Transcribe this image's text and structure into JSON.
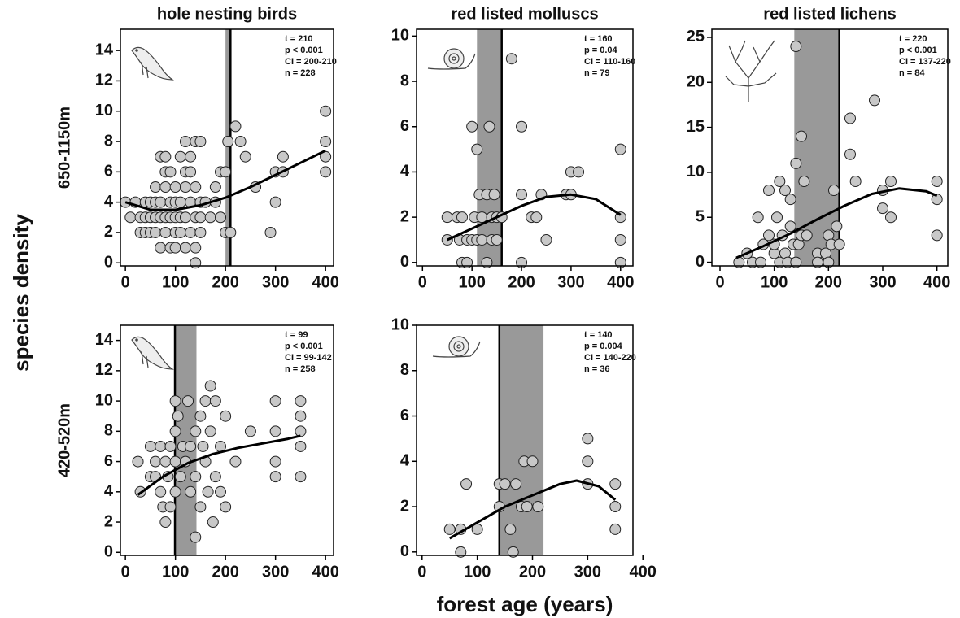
{
  "ylabel": "species density",
  "xlabel": "forest age (years)",
  "chart_data": [
    {
      "type": "scatter",
      "title": "hole nesting birds",
      "row_label": "650-1150m",
      "point_color": "#c8c8c8",
      "band_color": "#999999",
      "xlim": [
        -10,
        416
      ],
      "ylim": [
        -0.2,
        15.4
      ],
      "xticks": [
        0,
        100,
        200,
        300,
        400
      ],
      "yticks": [
        0,
        2,
        4,
        6,
        8,
        10,
        12,
        14
      ],
      "x": [
        0,
        10,
        20,
        30,
        30,
        40,
        40,
        40,
        50,
        50,
        50,
        60,
        60,
        60,
        60,
        70,
        70,
        70,
        70,
        80,
        80,
        80,
        80,
        80,
        90,
        90,
        90,
        90,
        100,
        100,
        100,
        100,
        100,
        110,
        110,
        110,
        110,
        120,
        120,
        120,
        120,
        120,
        130,
        130,
        130,
        130,
        140,
        140,
        140,
        140,
        140,
        150,
        150,
        150,
        150,
        160,
        170,
        180,
        180,
        190,
        190,
        200,
        200,
        205,
        210,
        220,
        230,
        240,
        260,
        290,
        300,
        300,
        315,
        315,
        400,
        400,
        400,
        400
      ],
      "values": [
        4,
        3,
        4,
        2,
        3,
        2,
        3,
        4,
        2,
        3,
        4,
        2,
        3,
        4,
        5,
        1,
        3,
        4,
        7,
        2,
        3,
        5,
        6,
        7,
        1,
        3,
        4,
        6,
        1,
        2,
        3,
        4,
        5,
        2,
        3,
        4,
        7,
        1,
        3,
        5,
        6,
        8,
        2,
        4,
        6,
        7,
        0,
        1,
        3,
        5,
        8,
        2,
        3,
        4,
        8,
        4,
        3,
        5,
        4,
        6,
        3,
        2,
        6,
        8,
        2,
        9,
        8,
        7,
        5,
        2,
        4,
        6,
        7,
        6,
        10,
        8,
        7,
        6
      ],
      "fit": {
        "x": [
          0,
          50,
          100,
          150,
          200,
          250,
          300,
          350,
          400
        ],
        "values": [
          4,
          3.5,
          3.5,
          3.8,
          4.3,
          5,
          5.8,
          6.6,
          7.4
        ]
      },
      "threshold": 210,
      "ci": [
        200,
        210
      ],
      "annotations": [
        "t = 210",
        "p < 0.001",
        "CI = 200-210",
        "n = 228"
      ]
    },
    {
      "type": "scatter",
      "title": "red listed molluscs",
      "point_color": "#c8c8c8",
      "band_color": "#999999",
      "xlim": [
        -12,
        425
      ],
      "ylim": [
        -0.15,
        10.3
      ],
      "xticks": [
        0,
        100,
        200,
        300,
        400
      ],
      "yticks": [
        0,
        2,
        4,
        6,
        8,
        10
      ],
      "x": [
        50,
        50,
        70,
        75,
        80,
        80,
        90,
        90,
        100,
        100,
        105,
        110,
        110,
        115,
        120,
        120,
        130,
        130,
        135,
        140,
        140,
        145,
        150,
        150,
        160,
        180,
        200,
        200,
        200,
        220,
        230,
        240,
        250,
        290,
        300,
        300,
        315,
        400,
        400,
        400,
        400
      ],
      "values": [
        1,
        2,
        2,
        1,
        0,
        2,
        1,
        0,
        6,
        1,
        2,
        5,
        1,
        3,
        2,
        1,
        3,
        0,
        6,
        2,
        1,
        3,
        2,
        1,
        2,
        9,
        6,
        3,
        0,
        2,
        2,
        3,
        1,
        3,
        4,
        3,
        4,
        5,
        2,
        1,
        0
      ],
      "fit": {
        "x": [
          50,
          100,
          150,
          200,
          250,
          300,
          350,
          400
        ],
        "values": [
          1,
          1.5,
          2,
          2.5,
          2.9,
          3,
          2.8,
          2.1
        ]
      },
      "threshold": 160,
      "ci": [
        110,
        160
      ],
      "annotations": [
        "t = 160",
        "p = 0.04",
        "CI = 110-160",
        "n = 79"
      ]
    },
    {
      "type": "scatter",
      "title": "red listed lichens",
      "point_color": "#c8c8c8",
      "band_color": "#999999",
      "xlim": [
        -15,
        420
      ],
      "ylim": [
        -0.4,
        25.9
      ],
      "xticks": [
        0,
        100,
        200,
        300,
        400
      ],
      "yticks": [
        0,
        5,
        10,
        15,
        20,
        25
      ],
      "x": [
        35,
        50,
        60,
        70,
        75,
        80,
        90,
        90,
        100,
        100,
        105,
        110,
        110,
        115,
        120,
        120,
        125,
        130,
        130,
        135,
        140,
        140,
        140,
        145,
        150,
        150,
        155,
        160,
        180,
        180,
        195,
        200,
        200,
        205,
        210,
        215,
        220,
        240,
        240,
        250,
        285,
        300,
        300,
        315,
        315,
        400,
        400,
        400
      ],
      "values": [
        0,
        1,
        0,
        5,
        0,
        2,
        8,
        3,
        1,
        2,
        5,
        9,
        0,
        3,
        8,
        1,
        0,
        4,
        7,
        2,
        24,
        11,
        0,
        2,
        14,
        3,
        9,
        3,
        1,
        0,
        1,
        0,
        3,
        2,
        8,
        4,
        2,
        16,
        12,
        9,
        18,
        8,
        6,
        9,
        5,
        9,
        7,
        3
      ],
      "fit": {
        "x": [
          30,
          80,
          130,
          180,
          230,
          280,
          330,
          380,
          400
        ],
        "values": [
          0.5,
          1.8,
          3.2,
          4.8,
          6.3,
          7.6,
          8.2,
          7.9,
          7.4
        ]
      },
      "threshold": 220,
      "ci": [
        137,
        220
      ],
      "annotations": [
        "t = 220",
        "p < 0.001",
        "CI = 137-220",
        "n = 84"
      ]
    },
    {
      "type": "scatter",
      "row_label": "420-520m",
      "point_color": "#c8c8c8",
      "band_color": "#999999",
      "xlim": [
        -10,
        416
      ],
      "ylim": [
        -0.2,
        15
      ],
      "xticks": [
        0,
        100,
        200,
        300,
        400
      ],
      "yticks": [
        0,
        2,
        4,
        6,
        8,
        10,
        12,
        14
      ],
      "x": [
        25,
        30,
        50,
        50,
        60,
        60,
        70,
        70,
        75,
        80,
        80,
        85,
        90,
        90,
        100,
        100,
        100,
        100,
        105,
        110,
        115,
        120,
        125,
        130,
        130,
        140,
        140,
        140,
        150,
        150,
        155,
        160,
        160,
        165,
        170,
        170,
        175,
        180,
        180,
        190,
        190,
        200,
        200,
        220,
        250,
        300,
        300,
        300,
        300,
        350,
        350,
        350,
        350,
        350
      ],
      "values": [
        6,
        4,
        7,
        5,
        6,
        5,
        7,
        4,
        3,
        6,
        2,
        5,
        7,
        3,
        10,
        8,
        6,
        4,
        9,
        5,
        7,
        6,
        10,
        7,
        4,
        1,
        8,
        5,
        9,
        3,
        7,
        10,
        6,
        4,
        11,
        8,
        2,
        10,
        5,
        7,
        4,
        9,
        3,
        6,
        8,
        10,
        8,
        6,
        5,
        10,
        9,
        8,
        7,
        5
      ],
      "fit": {
        "x": [
          25,
          75,
          125,
          175,
          225,
          275,
          325,
          350
        ],
        "values": [
          3.8,
          5,
          5.9,
          6.5,
          6.9,
          7.2,
          7.5,
          7.7
        ]
      },
      "threshold": 99,
      "ci": [
        99,
        142
      ],
      "annotations": [
        "t = 99",
        "p < 0.001",
        "CI = 99-142",
        "n = 258"
      ]
    },
    {
      "type": "scatter",
      "point_color": "#c8c8c8",
      "band_color": "#999999",
      "xlim": [
        -10,
        382
      ],
      "ylim": [
        -0.15,
        10
      ],
      "xticks": [
        0,
        100,
        200,
        300,
        400
      ],
      "yticks": [
        0,
        2,
        4,
        6,
        8,
        10
      ],
      "x": [
        50,
        70,
        70,
        80,
        100,
        140,
        140,
        150,
        160,
        165,
        170,
        180,
        185,
        190,
        200,
        210,
        300,
        300,
        300,
        350,
        350,
        350
      ],
      "values": [
        1,
        1,
        0,
        3,
        1,
        2,
        3,
        3,
        1,
        0,
        3,
        2,
        4,
        2,
        4,
        2,
        5,
        4,
        3,
        3,
        2,
        1
      ],
      "fit": {
        "x": [
          50,
          100,
          150,
          200,
          250,
          280,
          320,
          350
        ],
        "values": [
          0.6,
          1.3,
          2.0,
          2.5,
          3.0,
          3.15,
          2.9,
          2.3
        ]
      },
      "threshold": 140,
      "ci": [
        140,
        220
      ],
      "annotations": [
        "t = 140",
        "p = 0.004",
        "CI = 140-220",
        "n = 36"
      ]
    }
  ]
}
